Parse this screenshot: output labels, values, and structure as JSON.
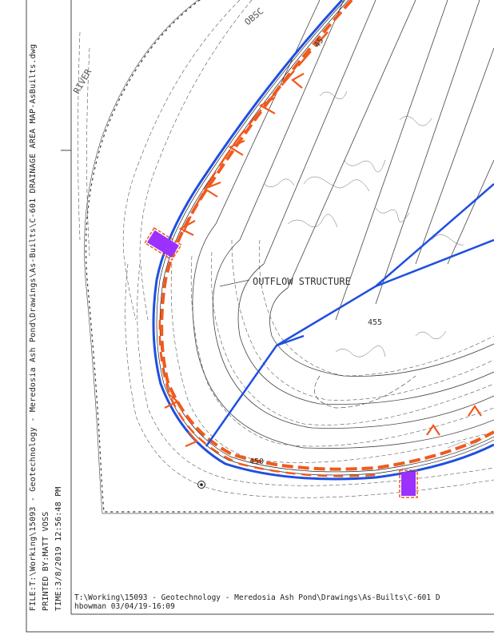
{
  "side_info": {
    "file": "FILE:T:\\Working\\15093 - Geotechnology - Meredosia Ash Pond\\Drawings\\As-Builts\\C-601 DRAINAGE AREA MAP-AsBuilts.dwg",
    "printed_by": "PRINTED BY:MATT VOSS",
    "time": "TIME:3/8/2019 12:56:48 PM"
  },
  "bottom_info": {
    "path": "T:\\Working\\15093 - Geotechnology - Meredosia Ash Pond\\Drawings\\As-Builts\\C-601 D",
    "user_date": "hbowman     03/04/19-16:09"
  },
  "map": {
    "labels": {
      "river": "RIVER",
      "obscured": "OBSC",
      "outflow_structure": "OUTFLOW STRUCTURE",
      "contour_455": "455",
      "contour_450": "450",
      "contour_top": "45"
    },
    "colors": {
      "channel_blue": "#1f4fe0",
      "berm_orange": "#f05a1e",
      "structure_purple": "#9b30ff",
      "linework": "#333333"
    },
    "icons": [
      "monument-marker-icon",
      "flow-arrow-icon"
    ]
  }
}
